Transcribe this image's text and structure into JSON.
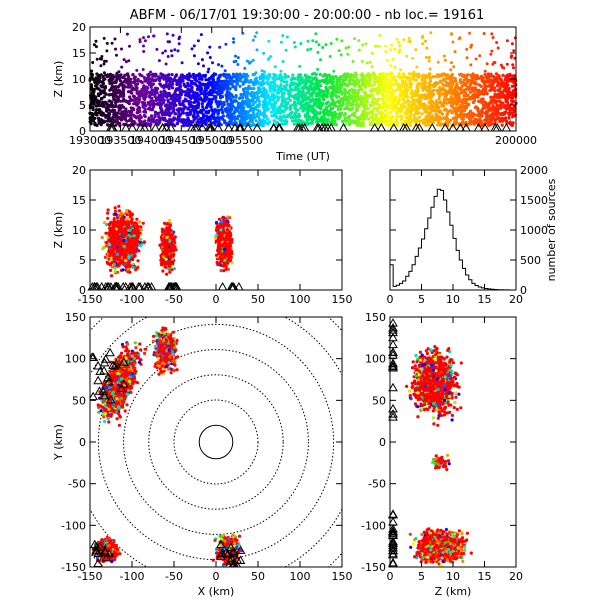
{
  "title": "ABFM - 06/17/01 19:30:00 - 20:00:00 - nb loc.=  19161",
  "colors": {
    "frame": "#000000",
    "background": "#ffffff",
    "source_red": "#ff0000",
    "colormap": "rainbow (black-purple-blue-cyan-green-yellow-orange-red)"
  },
  "chart_data": [
    {
      "type": "scatter",
      "panel": "time-height",
      "xlabel": "Time (UT)",
      "ylabel": "Z (km)",
      "xlim": [
        193000,
        200000
      ],
      "ylim": [
        0,
        20
      ],
      "xticks": [
        193000,
        193500,
        194000,
        194500,
        195000,
        195500,
        200000
      ],
      "yticks": [
        0,
        5,
        10,
        15,
        20
      ],
      "color_by": "time",
      "dense_height_band": [
        0,
        11
      ],
      "sparse_height_max": 19,
      "station_markers": "triangles at Z=0"
    },
    {
      "type": "scatter",
      "panel": "x-height",
      "xlabel": "",
      "ylabel": "Z (km)",
      "xlim": [
        -150,
        150
      ],
      "ylim": [
        0,
        20
      ],
      "xticks": [
        -150,
        -100,
        -50,
        0,
        50,
        100,
        150
      ],
      "yticks": [
        0,
        5,
        10,
        15,
        20
      ],
      "clusters": [
        {
          "x_range": [
            -150,
            -80
          ],
          "z_range": [
            0,
            18
          ],
          "core_x": -110,
          "core_z": 8
        },
        {
          "x_range": [
            -70,
            -45
          ],
          "z_range": [
            0,
            13
          ],
          "core_x": -57,
          "core_z": 7
        },
        {
          "x_range": [
            -5,
            25
          ],
          "z_range": [
            2,
            16
          ],
          "core_x": 10,
          "core_z": 8
        }
      ]
    },
    {
      "type": "bar",
      "panel": "height-histogram",
      "xlabel": "",
      "ylabel": "number of sources",
      "xlim": [
        0,
        20
      ],
      "ylim": [
        0,
        2000
      ],
      "xticks": [
        0,
        5,
        10,
        15,
        20
      ],
      "yticks": [
        0,
        500,
        1000,
        1500,
        2000
      ],
      "bin_width": 0.5,
      "bins": [
        0,
        0.5,
        1,
        1.5,
        2,
        2.5,
        3,
        3.5,
        4,
        4.5,
        5,
        5.5,
        6,
        6.5,
        7,
        7.5,
        8,
        8.5,
        9,
        9.5,
        10,
        10.5,
        11,
        11.5,
        12,
        12.5,
        13,
        13.5,
        14,
        14.5,
        15,
        15.5,
        16,
        16.5,
        17,
        17.5,
        18,
        18.5,
        19,
        19.5
      ],
      "values": [
        420,
        60,
        80,
        110,
        150,
        230,
        310,
        420,
        560,
        700,
        850,
        1020,
        1200,
        1380,
        1560,
        1680,
        1660,
        1500,
        1300,
        1080,
        860,
        660,
        500,
        360,
        250,
        170,
        110,
        75,
        50,
        35,
        25,
        18,
        12,
        8,
        5,
        4,
        3,
        2,
        1,
        1
      ]
    },
    {
      "type": "scatter",
      "panel": "plan-view",
      "xlabel": "X (km)",
      "ylabel": "Y (km)",
      "xlim": [
        -150,
        150
      ],
      "ylim": [
        -150,
        150
      ],
      "xticks": [
        -150,
        -100,
        -50,
        0,
        50,
        100,
        150
      ],
      "yticks": [
        -150,
        -100,
        -50,
        0,
        50,
        100,
        150
      ],
      "range_rings_km": [
        20,
        50,
        80,
        110,
        140,
        170,
        200
      ],
      "clusters": [
        {
          "x_range": [
            -150,
            -80
          ],
          "y_range": [
            20,
            150
          ],
          "core_x": -115,
          "core_y": 70
        },
        {
          "x_range": [
            -150,
            -100
          ],
          "y_range": [
            -150,
            -100
          ],
          "core_x": -130,
          "core_y": -130
        },
        {
          "x_range": [
            -10,
            40
          ],
          "y_range": [
            -150,
            -90
          ],
          "core_x": 15,
          "core_y": -130
        },
        {
          "x_range": [
            -90,
            -40
          ],
          "y_range": [
            60,
            150
          ],
          "core_x": -60,
          "core_y": 110
        }
      ]
    },
    {
      "type": "scatter",
      "panel": "height-y",
      "xlabel": "Z (km)",
      "ylabel": "",
      "xlim": [
        0,
        20
      ],
      "ylim": [
        -150,
        150
      ],
      "xticks": [
        0,
        5,
        10,
        15,
        20
      ],
      "yticks": [
        -150,
        -100,
        -50,
        0,
        50,
        100,
        150
      ],
      "clusters": [
        {
          "z_range": [
            0,
            18
          ],
          "y_range": [
            20,
            150
          ],
          "core_z": 7,
          "core_y": 70
        },
        {
          "z_range": [
            0,
            18
          ],
          "y_range": [
            -150,
            -90
          ],
          "core_z": 8,
          "core_y": -125
        },
        {
          "z_range": [
            5,
            12
          ],
          "y_range": [
            -40,
            -15
          ],
          "core_z": 8,
          "core_y": -25
        }
      ]
    }
  ]
}
